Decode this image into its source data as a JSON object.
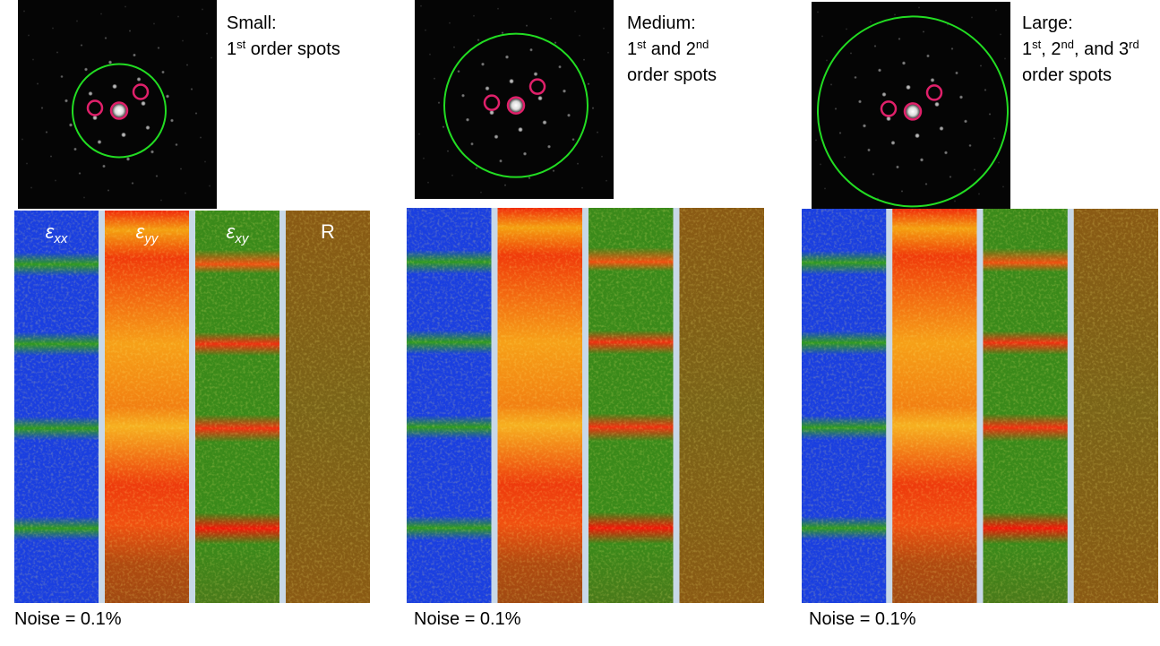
{
  "panels": [
    {
      "label": {
        "title": "Small:",
        "lines": [
          [
            {
              "text": "1"
            },
            {
              "sup": "st"
            },
            {
              "text": " order spots"
            }
          ]
        ]
      },
      "strip_labels": [
        {
          "main": "ε",
          "sub": "xx"
        },
        {
          "main": "ε",
          "sub": "yy"
        },
        {
          "main": "ε",
          "sub": "xy"
        },
        {
          "main": "R"
        }
      ],
      "noise": "Noise = 0.1%"
    },
    {
      "label": {
        "title": "Medium:",
        "lines": [
          [
            {
              "text": "1"
            },
            {
              "sup": "st"
            },
            {
              "text": " and 2"
            },
            {
              "sup": "nd"
            }
          ],
          [
            {
              "text": "order spots"
            }
          ]
        ]
      },
      "noise": "Noise = 0.1%"
    },
    {
      "label": {
        "title": "Large:",
        "lines": [
          [
            {
              "text": "1"
            },
            {
              "sup": "st"
            },
            {
              "text": ", 2"
            },
            {
              "sup": "nd"
            },
            {
              "text": ", and 3"
            },
            {
              "sup": "rd"
            }
          ],
          [
            {
              "text": "order spots"
            }
          ]
        ]
      },
      "noise": "Noise = 0.1%"
    }
  ]
}
